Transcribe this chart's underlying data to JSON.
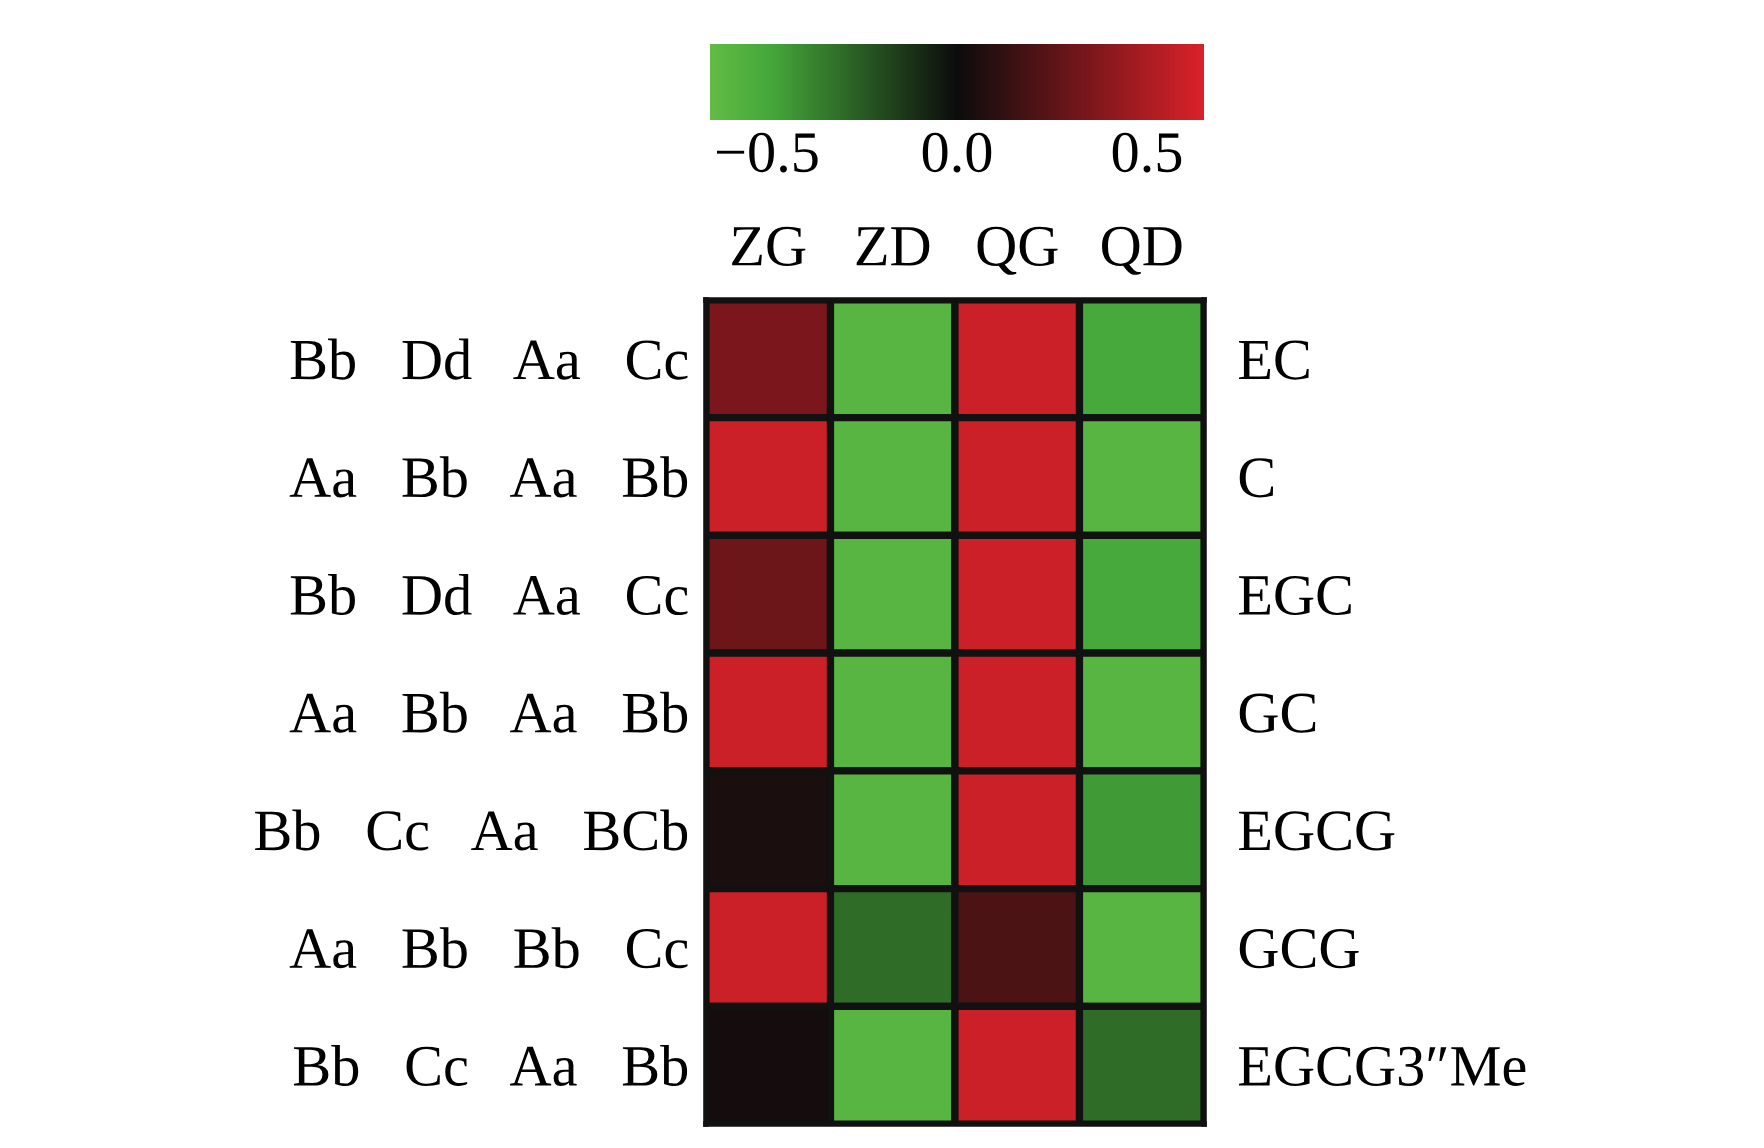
{
  "chart_data": {
    "type": "heatmap",
    "categories": [
      "ZG",
      "ZD",
      "QG",
      "QD"
    ],
    "y_categories": [
      "Bb   Dd   Aa   Cc",
      "Aa   Bb   Aa   Bb",
      "Bb   Dd   Aa   Cc",
      "Aa   Bb   Aa   Bb",
      "Bb   Cc   Aa   BCb",
      "Aa   Bb   Bb   Cc",
      "Bb   Cc   Aa   Bb"
    ],
    "y2_categories": [
      "EC",
      "C",
      "EGC",
      "GC",
      "EGCG",
      "GCG",
      "EGCG3″Me"
    ],
    "cells": [
      [
        0.35,
        -0.6,
        0.6,
        -0.5
      ],
      [
        0.6,
        -0.6,
        0.6,
        -0.6
      ],
      [
        0.3,
        -0.6,
        0.6,
        -0.5
      ],
      [
        0.6,
        -0.6,
        0.6,
        -0.6
      ],
      [
        0.05,
        -0.6,
        0.6,
        -0.45
      ],
      [
        0.6,
        -0.3,
        0.2,
        -0.6
      ],
      [
        0.03,
        -0.6,
        0.6,
        -0.3
      ]
    ],
    "clim": [
      -0.65,
      0.65
    ],
    "cticks": [
      {
        "value": -0.5,
        "label": "−0.5"
      },
      {
        "value": 0.0,
        "label": "0.0"
      },
      {
        "value": 0.5,
        "label": "0.5"
      }
    ]
  }
}
